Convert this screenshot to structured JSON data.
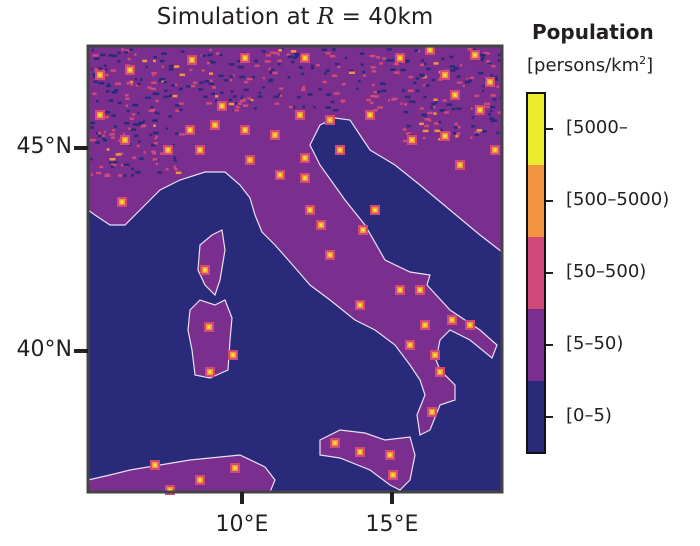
{
  "title": {
    "prefix": "Simulation at ",
    "variable": "R",
    "suffix": " = 40km"
  },
  "axes": {
    "y_ticks": [
      {
        "label": "45°N",
        "lat": 45
      },
      {
        "label": "40°N",
        "lat": 40
      }
    ],
    "x_ticks": [
      {
        "label": "10°E",
        "lon": 10
      },
      {
        "label": "15°E",
        "lon": 15
      }
    ]
  },
  "legend": {
    "title": "Population",
    "unit": "[persons/km",
    "unit_sup": "2",
    "unit_close": "]",
    "classes": [
      {
        "label": "[5000–",
        "color": "#ecec2e"
      },
      {
        "label": "[500–5000)",
        "color": "#f5943f"
      },
      {
        "label": "[50–500)",
        "color": "#cf4a78"
      },
      {
        "label": "[5–50)",
        "color": "#7a2e8e"
      },
      {
        "label": "[0–5)",
        "color": "#2a2a7a"
      }
    ]
  },
  "colors": {
    "sea": "#2a2a7a",
    "land": "#7a2e8e",
    "coastline": "#e8e0f0"
  }
}
